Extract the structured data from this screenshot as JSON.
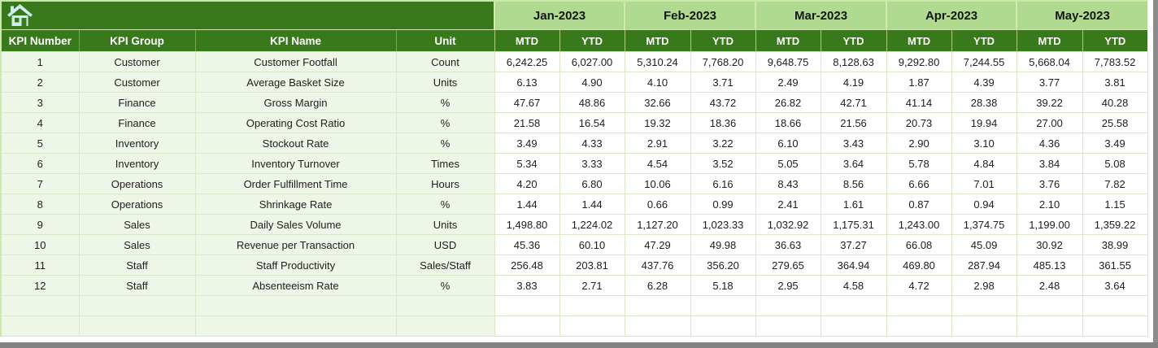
{
  "table": {
    "columns": [
      "KPI Number",
      "KPI Group",
      "KPI Name",
      "Unit"
    ],
    "months": [
      "Jan-2023",
      "Feb-2023",
      "Mar-2023",
      "Apr-2023",
      "May-2023"
    ],
    "subheaders": [
      "MTD",
      "YTD"
    ],
    "rows": [
      {
        "num": "1",
        "group": "Customer",
        "name": "Customer Footfall",
        "unit": "Count",
        "values": [
          "6,242.25",
          "6,027.00",
          "5,310.24",
          "7,768.20",
          "9,648.75",
          "8,128.63",
          "9,292.80",
          "7,244.55",
          "5,668.04",
          "7,783.52"
        ]
      },
      {
        "num": "2",
        "group": "Customer",
        "name": "Average Basket Size",
        "unit": "Units",
        "values": [
          "6.13",
          "4.90",
          "4.10",
          "3.71",
          "2.49",
          "4.19",
          "1.87",
          "4.39",
          "3.77",
          "3.81"
        ]
      },
      {
        "num": "3",
        "group": "Finance",
        "name": "Gross Margin",
        "unit": "%",
        "values": [
          "47.67",
          "48.86",
          "32.66",
          "43.72",
          "26.82",
          "42.71",
          "41.14",
          "28.38",
          "39.22",
          "40.28"
        ]
      },
      {
        "num": "4",
        "group": "Finance",
        "name": "Operating Cost Ratio",
        "unit": "%",
        "values": [
          "21.58",
          "16.54",
          "19.32",
          "18.36",
          "18.66",
          "21.56",
          "20.73",
          "19.94",
          "27.00",
          "25.58"
        ]
      },
      {
        "num": "5",
        "group": "Inventory",
        "name": "Stockout Rate",
        "unit": "%",
        "values": [
          "3.49",
          "4.33",
          "2.91",
          "3.22",
          "6.10",
          "3.43",
          "2.90",
          "3.10",
          "4.36",
          "3.49"
        ]
      },
      {
        "num": "6",
        "group": "Inventory",
        "name": "Inventory Turnover",
        "unit": "Times",
        "values": [
          "5.34",
          "3.33",
          "4.54",
          "3.52",
          "5.05",
          "3.64",
          "5.78",
          "4.84",
          "3.84",
          "5.08"
        ]
      },
      {
        "num": "7",
        "group": "Operations",
        "name": "Order Fulfillment Time",
        "unit": "Hours",
        "values": [
          "4.20",
          "6.80",
          "10.06",
          "6.16",
          "8.43",
          "8.56",
          "6.66",
          "7.01",
          "3.76",
          "7.82"
        ]
      },
      {
        "num": "8",
        "group": "Operations",
        "name": "Shrinkage Rate",
        "unit": "%",
        "values": [
          "1.44",
          "1.44",
          "0.66",
          "0.99",
          "2.41",
          "1.61",
          "0.87",
          "0.94",
          "2.10",
          "1.15"
        ]
      },
      {
        "num": "9",
        "group": "Sales",
        "name": "Daily Sales Volume",
        "unit": "Units",
        "values": [
          "1,498.80",
          "1,224.02",
          "1,127.20",
          "1,023.33",
          "1,032.92",
          "1,175.31",
          "1,243.00",
          "1,374.75",
          "1,199.00",
          "1,359.22"
        ]
      },
      {
        "num": "10",
        "group": "Sales",
        "name": "Revenue per Transaction",
        "unit": "USD",
        "values": [
          "45.36",
          "60.10",
          "47.29",
          "49.98",
          "36.63",
          "37.27",
          "66.08",
          "45.09",
          "30.92",
          "38.99"
        ]
      },
      {
        "num": "11",
        "group": "Staff",
        "name": "Staff Productivity",
        "unit": "Sales/Staff",
        "values": [
          "256.48",
          "203.81",
          "437.76",
          "356.20",
          "279.65",
          "364.94",
          "469.80",
          "287.94",
          "485.13",
          "361.55"
        ]
      },
      {
        "num": "12",
        "group": "Staff",
        "name": "Absenteeism Rate",
        "unit": "%",
        "values": [
          "3.83",
          "2.71",
          "6.28",
          "5.18",
          "2.95",
          "4.58",
          "4.72",
          "2.98",
          "2.48",
          "3.64"
        ]
      }
    ],
    "empty_row_count": 2
  },
  "icons": {
    "home": "home-icon"
  },
  "colors": {
    "header_green": "#38791b",
    "month_band_green": "#afda90",
    "row_label_green": "#eef6e8",
    "grid_green": "#d9e7cb",
    "frame_gray": "#8c8c8c",
    "home_icon_blue": "#d2ecf0"
  }
}
